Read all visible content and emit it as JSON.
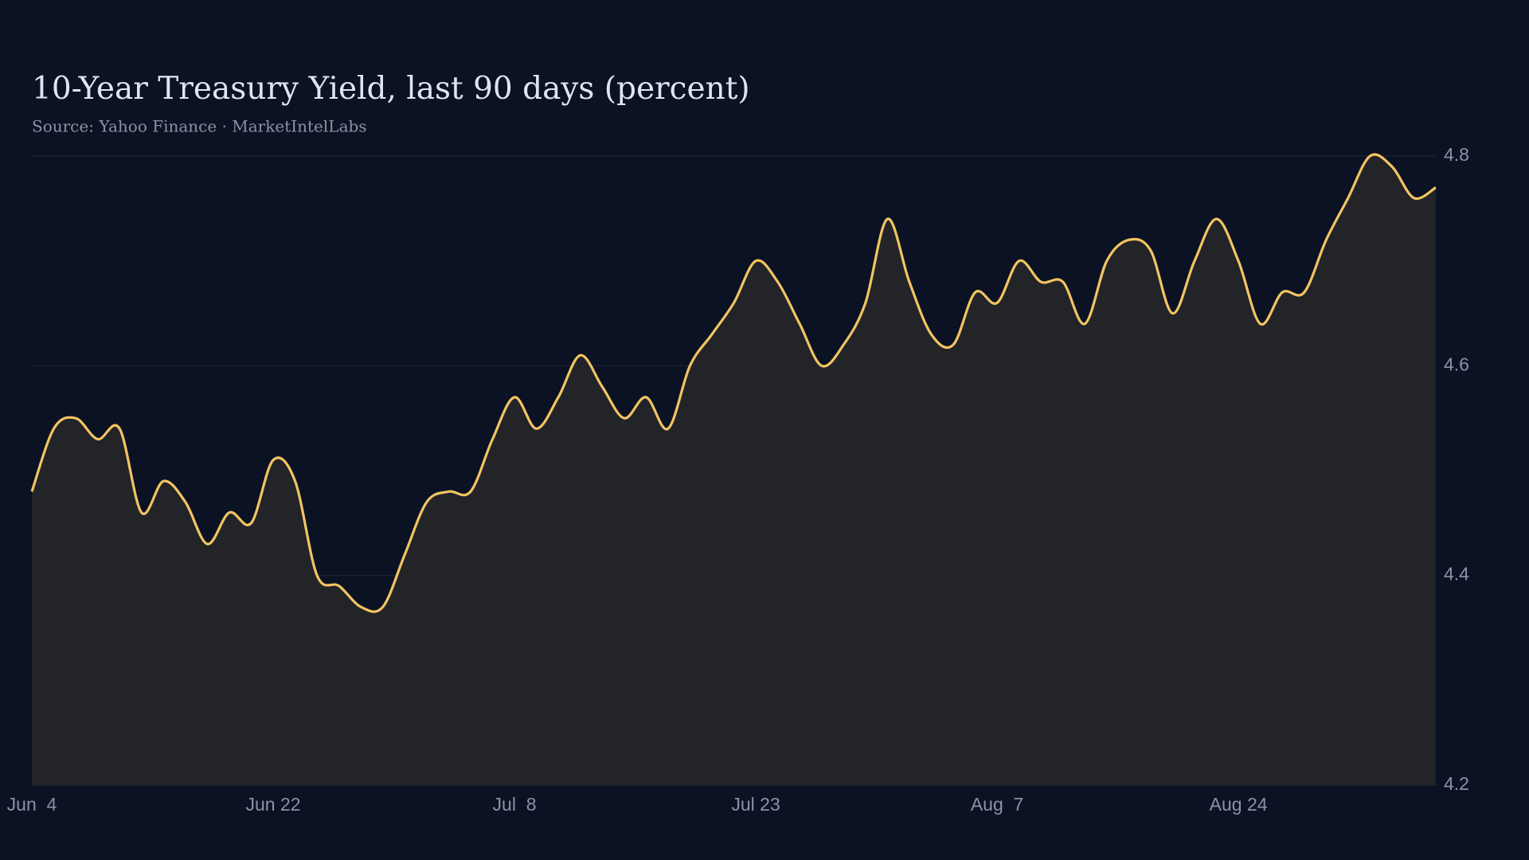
{
  "chart_data": {
    "type": "line",
    "title": "10-Year Treasury Yield, last 90 days (percent)",
    "subtitle": "Source: Yahoo Finance · MarketIntelLabs",
    "categories": [
      "Jun  4",
      null,
      null,
      null,
      null,
      null,
      null,
      null,
      null,
      null,
      null,
      "Jun 22",
      null,
      null,
      null,
      null,
      null,
      null,
      null,
      null,
      null,
      null,
      "Jul  8",
      null,
      null,
      null,
      null,
      null,
      null,
      null,
      null,
      null,
      null,
      "Jul 23",
      null,
      null,
      null,
      null,
      null,
      null,
      null,
      null,
      null,
      null,
      "Aug  7",
      null,
      null,
      null,
      null,
      null,
      null,
      null,
      null,
      null,
      null,
      "Aug 24",
      null,
      null,
      null,
      null,
      null,
      null,
      null,
      null,
      null
    ],
    "values": [
      4.48,
      4.54,
      4.55,
      4.53,
      4.54,
      4.46,
      4.49,
      4.47,
      4.43,
      4.46,
      4.45,
      4.51,
      4.49,
      4.4,
      4.39,
      4.37,
      4.37,
      4.42,
      4.47,
      4.48,
      4.48,
      4.53,
      4.57,
      4.54,
      4.57,
      4.61,
      4.58,
      4.55,
      4.57,
      4.54,
      4.6,
      4.63,
      4.66,
      4.7,
      4.68,
      4.64,
      4.6,
      4.62,
      4.66,
      4.74,
      4.68,
      4.63,
      4.62,
      4.67,
      4.66,
      4.7,
      4.68,
      4.68,
      4.64,
      4.7,
      4.72,
      4.71,
      4.65,
      4.7,
      4.74,
      4.7,
      4.64,
      4.67,
      4.67,
      4.72,
      4.76,
      4.8,
      4.79,
      4.76,
      4.77
    ],
    "color": "#f2c462",
    "ylim": [
      4.2,
      4.8
    ],
    "yticks": [
      4.2,
      4.4,
      4.6,
      4.8
    ],
    "grid": true,
    "area": true
  }
}
